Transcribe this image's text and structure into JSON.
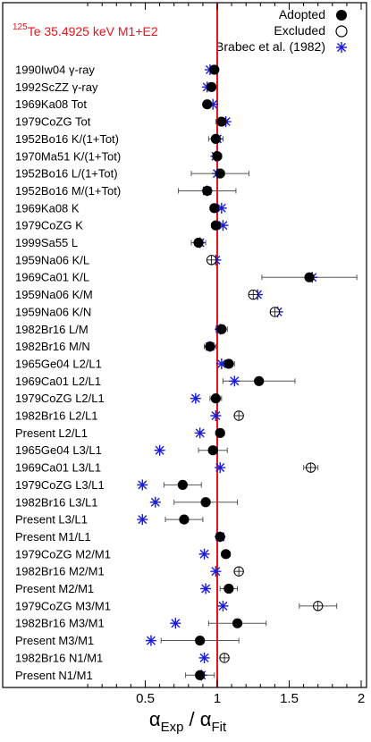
{
  "chart_data": {
    "type": "scatter",
    "title": "125Te 35.4925 keV M1+E2",
    "title_parts": {
      "mass": "125",
      "rest": "Te 35.4925 keV M1+E2"
    },
    "xlabel": "αExp / αFit",
    "xlabel_parts": {
      "alpha1": "α",
      "sub1": "Exp",
      "slash": " / ",
      "alpha2": "α",
      "sub2": "Fit"
    },
    "xlim": [
      0.0,
      2.05
    ],
    "xticks": [
      0.5,
      1,
      1.5,
      2
    ],
    "xtick_labels": [
      "0.5",
      "1",
      "1.5",
      "2"
    ],
    "reference_line": 1.0,
    "colors": {
      "reference": "#e8141c",
      "brabec": "#1a1adb",
      "adopted": "#000000",
      "excluded": "#000000"
    },
    "legend": {
      "position": "top-right",
      "entries": [
        "Adopted",
        "Excluded",
        "Brabec et al. (1982)"
      ]
    },
    "rows": [
      {
        "label": "1990Iw04 γ-ray",
        "value": 0.98,
        "err": 0.01,
        "status": "adopted",
        "brabec": 0.95
      },
      {
        "label": "1992ScZZ γ-ray",
        "value": 0.96,
        "err": 0.02,
        "status": "adopted",
        "brabec": 0.93
      },
      {
        "label": "1969Ka08 Tot",
        "value": 0.93,
        "err": 0.02,
        "status": "adopted",
        "brabec": 0.97
      },
      {
        "label": "1979CoZG Tot",
        "value": 1.03,
        "err": 0.04,
        "status": "adopted",
        "brabec": 1.06
      },
      {
        "label": "1952Bo16 K/(1+Tot)",
        "value": 0.99,
        "err": 0.05,
        "status": "adopted",
        "brabec": 1.0
      },
      {
        "label": "1970Ma51 K/(1+Tot)",
        "value": 1.0,
        "err": 0.03,
        "status": "adopted",
        "brabec": 0.99
      },
      {
        "label": "1952Bo16 L/(1+Tot)",
        "value": 1.02,
        "err": 0.2,
        "status": "adopted",
        "brabec": 1.0
      },
      {
        "label": "1952Bo16 M/(1+Tot)",
        "value": 0.93,
        "err": 0.2,
        "status": "adopted",
        "brabec": 0.93
      },
      {
        "label": "1969Ka08 K",
        "value": 0.98,
        "err": 0.02,
        "status": "adopted",
        "brabec": 1.03
      },
      {
        "label": "1979CoZG K",
        "value": 0.99,
        "err": 0.03,
        "status": "adopted",
        "brabec": 1.04
      },
      {
        "label": "1999Sa55 L",
        "value": 0.87,
        "err": 0.05,
        "status": "adopted",
        "brabec": 0.88
      },
      {
        "label": "1959Na06 K/L",
        "value": 0.96,
        "err": 0.0,
        "status": "excluded",
        "brabec": 0.99
      },
      {
        "label": "1969Ca01 K/L",
        "value": 1.64,
        "err": 0.33,
        "status": "adopted",
        "brabec": 1.66
      },
      {
        "label": "1959Na06 K/M",
        "value": 1.25,
        "err": 0.02,
        "status": "excluded",
        "brabec": 1.28
      },
      {
        "label": "1959Na06 K/N",
        "value": 1.4,
        "err": 0.02,
        "status": "excluded",
        "brabec": 1.42
      },
      {
        "label": "1982Br16 L/M",
        "value": 1.03,
        "err": 0.04,
        "status": "adopted",
        "brabec": 1.02
      },
      {
        "label": "1982Br16 M/N",
        "value": 0.95,
        "err": 0.04,
        "status": "adopted",
        "brabec": 0.95
      },
      {
        "label": "1965Ge04 L2/L1",
        "value": 1.08,
        "err": 0.04,
        "status": "adopted",
        "brabec": 1.03
      },
      {
        "label": "1969Ca01 L2/L1",
        "value": 1.29,
        "err": 0.25,
        "status": "adopted",
        "brabec": 1.12
      },
      {
        "label": "1979CoZG L2/L1",
        "value": 0.99,
        "err": 0.04,
        "status": "adopted",
        "brabec": 0.85
      },
      {
        "label": "1982Br16 L2/L1",
        "value": 1.15,
        "err": 0.0,
        "status": "excluded",
        "brabec": 0.99
      },
      {
        "label": "Present L2/L1",
        "value": 1.02,
        "err": 0.03,
        "status": "adopted",
        "brabec": 0.88
      },
      {
        "label": "1965Ge04 L3/L1",
        "value": 0.97,
        "err": 0.1,
        "status": "adopted",
        "brabec": 0.6
      },
      {
        "label": "1969Ca01 L3/L1",
        "value": 1.65,
        "err": 0.05,
        "status": "excluded",
        "brabec": 1.02
      },
      {
        "label": "1979CoZG L3/L1",
        "value": 0.76,
        "err": 0.13,
        "status": "adopted",
        "brabec": 0.48
      },
      {
        "label": "1982Br16 L3/L1",
        "value": 0.92,
        "err": 0.22,
        "status": "adopted",
        "brabec": 0.57
      },
      {
        "label": "Present L3/L1",
        "value": 0.77,
        "err": 0.13,
        "status": "adopted",
        "brabec": 0.48
      },
      {
        "label": "Present M1/L1",
        "value": 1.02,
        "err": 0.02,
        "status": "adopted",
        "brabec": 1.02
      },
      {
        "label": "1979CoZG M2/M1",
        "value": 1.06,
        "err": 0.03,
        "status": "adopted",
        "brabec": 0.91
      },
      {
        "label": "1982Br16 M2/M1",
        "value": 1.15,
        "err": 0.0,
        "status": "excluded",
        "brabec": 0.99
      },
      {
        "label": "Present M2/M1",
        "value": 1.08,
        "err": 0.06,
        "status": "adopted",
        "brabec": 0.92
      },
      {
        "label": "1979CoZG M3/M1",
        "value": 1.7,
        "err": 0.13,
        "status": "excluded",
        "brabec": 1.04
      },
      {
        "label": "1982Br16 M3/M1",
        "value": 1.14,
        "err": 0.2,
        "status": "adopted",
        "brabec": 0.71
      },
      {
        "label": "Present M3/M1",
        "value": 0.88,
        "err": 0.27,
        "status": "adopted",
        "brabec": 0.54
      },
      {
        "label": "1982Br16 N1/M1",
        "value": 1.05,
        "err": 0.0,
        "status": "excluded",
        "brabec": 0.91
      },
      {
        "label": "Present N1/M1",
        "value": 0.88,
        "err": 0.1,
        "status": "adopted",
        "brabec": 0.89
      }
    ]
  }
}
